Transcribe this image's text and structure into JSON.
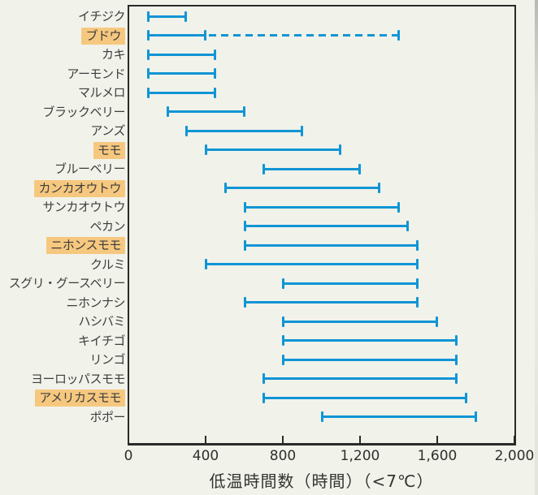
{
  "chart_data": {
    "type": "range_bar",
    "title": "",
    "xlabel": "低温時間数（時間）（<7℃）",
    "ylabel": "",
    "unit": "hours below 7°C",
    "xlim": [
      0,
      2000
    ],
    "grid": false,
    "legend": "none",
    "x_ticks": [
      {
        "value": 0,
        "label": "0"
      },
      {
        "value": 400,
        "label": "400"
      },
      {
        "value": 800,
        "label": "800"
      },
      {
        "value": 1200,
        "label": "1,200"
      },
      {
        "value": 1600,
        "label": "1,600"
      },
      {
        "value": 2000,
        "label": "2,000"
      }
    ],
    "series": [
      {
        "label": "イチジク",
        "min": 100,
        "max": 300,
        "highlighted": false
      },
      {
        "label": "ブドウ",
        "min": 100,
        "max": 400,
        "dashed_max": 1400,
        "highlighted": true
      },
      {
        "label": "カキ",
        "min": 100,
        "max": 450,
        "highlighted": false
      },
      {
        "label": "アーモンド",
        "min": 100,
        "max": 450,
        "highlighted": false
      },
      {
        "label": "マルメロ",
        "min": 100,
        "max": 450,
        "highlighted": false
      },
      {
        "label": "ブラックベリー",
        "min": 200,
        "max": 600,
        "highlighted": false
      },
      {
        "label": "アンズ",
        "min": 300,
        "max": 900,
        "highlighted": false
      },
      {
        "label": "モモ",
        "min": 400,
        "max": 1100,
        "highlighted": true
      },
      {
        "label": "ブルーベリー",
        "min": 700,
        "max": 1200,
        "highlighted": false
      },
      {
        "label": "カンカオウトウ",
        "min": 500,
        "max": 1300,
        "highlighted": true
      },
      {
        "label": "サンカオウトウ",
        "min": 600,
        "max": 1400,
        "highlighted": false
      },
      {
        "label": "ペカン",
        "min": 600,
        "max": 1450,
        "highlighted": false
      },
      {
        "label": "ニホンスモモ",
        "min": 600,
        "max": 1500,
        "highlighted": true
      },
      {
        "label": "クルミ",
        "min": 400,
        "max": 1500,
        "highlighted": false
      },
      {
        "label": "スグリ・グースベリー",
        "min": 800,
        "max": 1500,
        "highlighted": false
      },
      {
        "label": "ニホンナシ",
        "min": 600,
        "max": 1500,
        "highlighted": false
      },
      {
        "label": "ハシバミ",
        "min": 800,
        "max": 1600,
        "highlighted": false
      },
      {
        "label": "キイチゴ",
        "min": 800,
        "max": 1700,
        "highlighted": false
      },
      {
        "label": "リンゴ",
        "min": 800,
        "max": 1700,
        "highlighted": false
      },
      {
        "label": "ヨーロッパスモモ",
        "min": 700,
        "max": 1700,
        "highlighted": false
      },
      {
        "label": "アメリカスモモ",
        "min": 700,
        "max": 1750,
        "highlighted": true
      },
      {
        "label": "ポポー",
        "min": 1000,
        "max": 1800,
        "highlighted": false
      }
    ]
  },
  "colors": {
    "bar": "#1095d5",
    "axis": "#2a2a28",
    "label_text": "#3d3d3d",
    "tick_text": "#2f2f2d",
    "highlight": "#f6c87f",
    "background": "#f1f2ea"
  }
}
